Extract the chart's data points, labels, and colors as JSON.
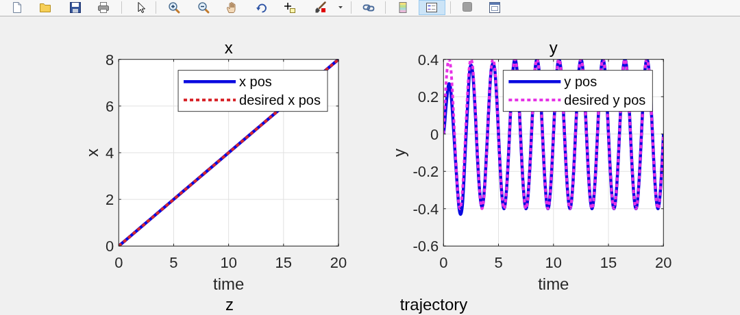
{
  "chart_data": [
    {
      "type": "line",
      "title": "x",
      "xlabel": "time",
      "ylabel": "x",
      "xlim": [
        0,
        20
      ],
      "ylim": [
        0,
        8
      ],
      "xticks": [
        0,
        5,
        10,
        15,
        20
      ],
      "yticks": [
        0,
        2,
        4,
        6,
        8
      ],
      "grid": true,
      "legend": "top right",
      "series": [
        {
          "name": "x pos",
          "color": "#0a0ae0",
          "line_style": "solid",
          "x": [
            0,
            2,
            4,
            6,
            8,
            10,
            12,
            14,
            19.5,
            20
          ],
          "values": [
            0,
            0.8,
            1.6,
            2.4,
            3.2,
            4,
            4.8,
            5.6,
            7.8,
            8
          ]
        },
        {
          "name": "desired x pos",
          "color": "#d8262b",
          "line_style": "dotted",
          "x": [
            0,
            2,
            4,
            6,
            8,
            10,
            12,
            14,
            19.5,
            20
          ],
          "values": [
            0,
            0.8,
            1.6,
            2.4,
            3.2,
            4,
            4.8,
            5.6,
            7.8,
            8
          ]
        }
      ]
    },
    {
      "type": "line",
      "title": "y",
      "xlabel": "time",
      "ylabel": "y",
      "xlim": [
        0,
        20
      ],
      "ylim": [
        -0.6,
        0.4
      ],
      "xticks": [
        0,
        5,
        10,
        15,
        20
      ],
      "yticks": [
        -0.6,
        -0.4,
        -0.2,
        0,
        0.2,
        0.4
      ],
      "grid": true,
      "legend": "top right",
      "series": [
        {
          "name": "y pos",
          "color": "#0a0ae0",
          "line_style": "solid",
          "x": [
            0,
            0.08,
            0.2,
            0.35,
            0.5,
            0.6,
            0.75,
            0.92,
            1.08,
            1.25,
            1.4,
            1.55,
            1.7,
            1.85,
            2,
            2.08,
            2.2,
            2.35,
            2.5,
            2.65,
            2.92,
            3.08,
            3.25,
            3.5,
            3.75,
            3.92,
            4,
            4.08,
            4.35,
            4.5,
            4.65,
            4.92,
            5.08,
            5.25,
            5.5,
            5.75,
            5.92,
            6,
            6.08,
            6.35,
            6.5,
            6.65,
            6.92,
            7.08,
            7.25,
            7.5,
            7.75,
            7.92,
            8,
            8.08,
            8.35,
            8.5,
            8.65,
            8.92,
            9.08,
            9.25,
            9.5,
            9.75,
            9.92,
            10,
            10.08,
            10.35,
            10.5,
            10.65,
            10.92,
            11.08,
            11.25,
            11.5,
            11.75,
            11.92,
            12,
            12.08,
            12.35,
            12.5,
            12.65,
            12.92,
            13.08,
            13.25,
            13.5,
            13.75,
            13.92,
            14,
            14.08,
            14.35,
            14.5,
            14.65,
            14.92,
            15.08,
            15.25,
            15.5,
            15.75,
            15.92,
            16,
            16.08,
            16.35,
            16.5,
            16.65,
            16.92,
            17.08,
            17.25,
            17.5,
            17.75,
            17.92,
            18,
            18.08,
            18.35,
            18.5,
            18.65,
            18.92,
            19.08,
            19.25,
            19.5,
            19.75,
            19.92,
            20
          ],
          "values": [
            0,
            0.04,
            0.13,
            0.22,
            0.27,
            0.26,
            0.17,
            0.02,
            -0.13,
            -0.28,
            -0.39,
            -0.43,
            -0.39,
            -0.25,
            -0.06,
            0.03,
            0.16,
            0.32,
            0.37,
            0.33,
            0.08,
            -0.12,
            -0.28,
            -0.39,
            -0.27,
            -0.09,
            0,
            0.1,
            0.35,
            0.38,
            0.35,
            0.1,
            -0.1,
            -0.28,
            -0.4,
            -0.28,
            -0.1,
            0,
            0.1,
            0.36,
            0.4,
            0.36,
            0.1,
            -0.1,
            -0.28,
            -0.4,
            -0.28,
            -0.1,
            0,
            0.1,
            0.36,
            0.4,
            0.36,
            0.1,
            -0.1,
            -0.28,
            -0.4,
            -0.28,
            -0.1,
            0,
            0.1,
            0.36,
            0.4,
            0.36,
            0.1,
            -0.1,
            -0.28,
            -0.4,
            -0.28,
            -0.1,
            0,
            0.1,
            0.36,
            0.4,
            0.36,
            0.1,
            -0.1,
            -0.28,
            -0.4,
            -0.28,
            -0.1,
            0,
            0.1,
            0.36,
            0.4,
            0.36,
            0.1,
            -0.1,
            -0.28,
            -0.4,
            -0.28,
            -0.1,
            0,
            0.1,
            0.36,
            0.4,
            0.36,
            0.1,
            -0.1,
            -0.28,
            -0.4,
            -0.28,
            -0.1,
            0,
            0.1,
            0.36,
            0.4,
            0.36,
            0.1,
            -0.1,
            -0.28,
            -0.4,
            -0.28,
            -0.1,
            0
          ]
        },
        {
          "name": "desired y pos",
          "color": "#e633e6",
          "line_style": "dotted",
          "x": [
            0,
            0.08,
            0.35,
            0.5,
            0.65,
            0.92,
            1.08,
            1.25,
            1.5,
            1.75,
            1.92,
            2,
            2.08,
            2.35,
            2.5,
            2.65,
            2.92,
            3.08,
            3.25,
            3.5,
            3.75,
            3.92,
            4,
            4.08,
            4.35,
            4.5,
            4.65,
            4.92,
            5.08,
            5.25,
            5.5,
            5.75,
            5.92,
            6,
            6.08,
            6.35,
            6.5,
            6.65,
            6.92,
            7.08,
            7.25,
            7.5,
            7.75,
            7.92,
            8,
            8.08,
            8.35,
            8.5,
            8.65,
            8.92,
            9.08,
            9.25,
            9.5,
            9.75,
            9.92,
            10,
            10.08,
            10.35,
            10.5,
            10.65,
            10.92,
            11.08,
            11.25,
            11.5,
            11.75,
            11.92,
            12,
            12.08,
            12.35,
            12.5,
            12.65,
            12.92,
            13.08,
            13.25,
            13.5,
            13.75,
            13.92,
            14,
            14.08,
            14.35,
            14.5,
            14.65,
            14.92,
            15.08,
            15.25,
            15.5,
            15.75,
            15.92,
            16,
            16.08,
            16.35,
            16.5,
            16.65,
            16.92,
            17.08,
            17.25,
            17.5,
            17.75,
            17.92,
            18,
            18.08,
            18.35,
            18.5,
            18.65,
            18.92,
            19.08,
            19.25,
            19.5,
            19.75,
            19.92,
            20
          ],
          "values": [
            0,
            0.1,
            0.36,
            0.4,
            0.36,
            0.1,
            -0.1,
            -0.28,
            -0.4,
            -0.28,
            -0.1,
            0,
            0.1,
            0.36,
            0.4,
            0.36,
            0.1,
            -0.1,
            -0.28,
            -0.4,
            -0.28,
            -0.1,
            0,
            0.1,
            0.36,
            0.4,
            0.36,
            0.1,
            -0.1,
            -0.28,
            -0.4,
            -0.28,
            -0.1,
            0,
            0.1,
            0.36,
            0.4,
            0.36,
            0.1,
            -0.1,
            -0.28,
            -0.4,
            -0.28,
            -0.1,
            0,
            0.1,
            0.36,
            0.4,
            0.36,
            0.1,
            -0.1,
            -0.28,
            -0.4,
            -0.28,
            -0.1,
            0,
            0.1,
            0.36,
            0.4,
            0.36,
            0.1,
            -0.1,
            -0.28,
            -0.4,
            -0.28,
            -0.1,
            0,
            0.1,
            0.36,
            0.4,
            0.36,
            0.1,
            -0.1,
            -0.28,
            -0.4,
            -0.28,
            -0.1,
            0,
            0.1,
            0.36,
            0.4,
            0.36,
            0.1,
            -0.1,
            -0.28,
            -0.4,
            -0.28,
            -0.1,
            0,
            0.1,
            0.36,
            0.4,
            0.36,
            0.1,
            -0.1,
            -0.28,
            -0.4,
            -0.28,
            -0.1,
            0,
            0.1,
            0.36,
            0.4,
            0.36,
            0.1,
            -0.1,
            -0.28,
            -0.4,
            -0.28,
            -0.1,
            0
          ]
        }
      ]
    },
    {
      "type": "other",
      "title": "z"
    },
    {
      "type": "other",
      "title": "trajectory"
    }
  ]
}
